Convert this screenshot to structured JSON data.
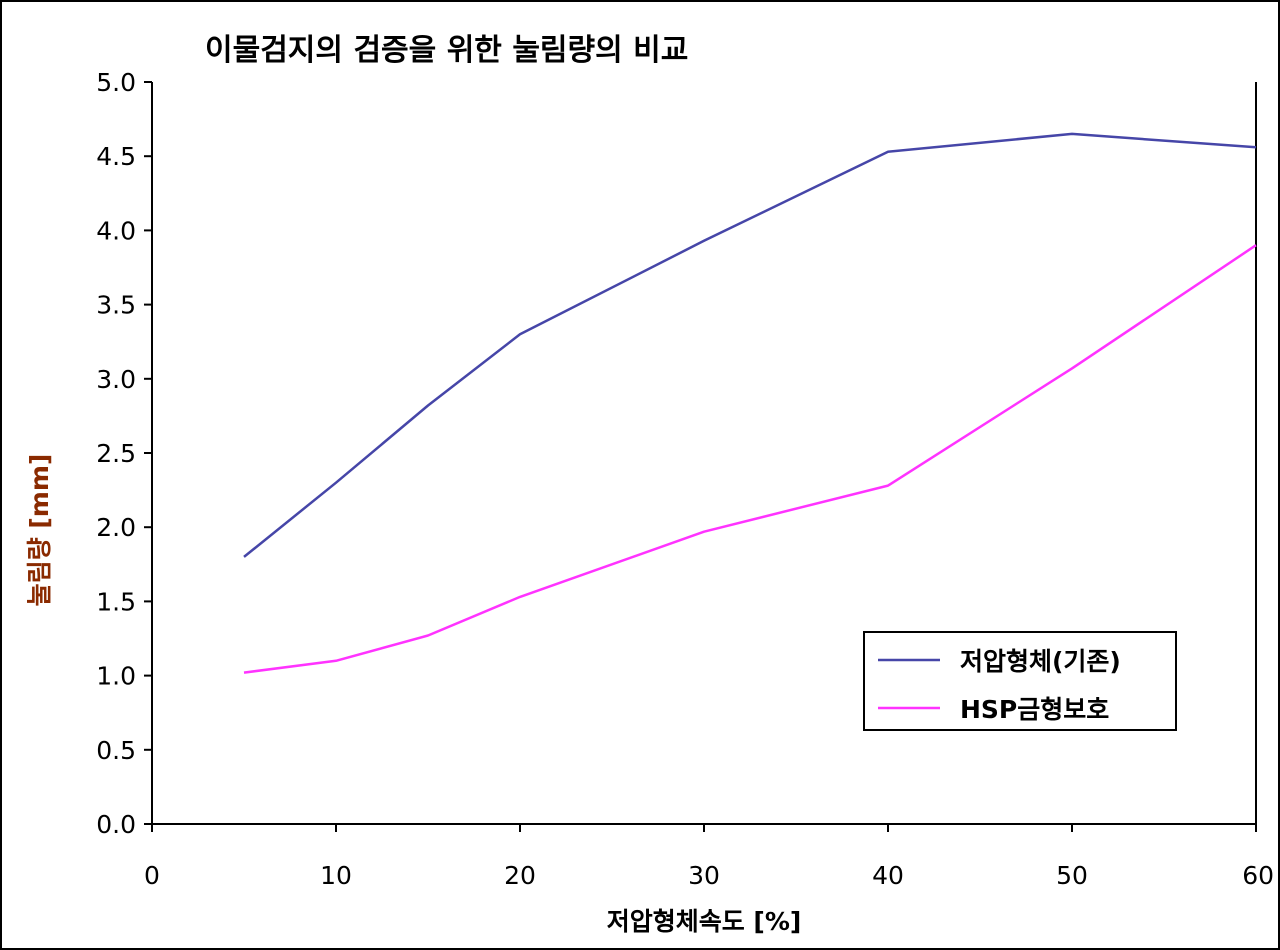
{
  "chart_data": {
    "type": "line",
    "title": "이물검지의 검증을 위한 눌림량의 비교",
    "xlabel": "저압형체속도 [%]",
    "ylabel": "눌림량 [mm]",
    "xlim": [
      0,
      60
    ],
    "ylim": [
      0,
      5
    ],
    "x_ticks": [
      "0",
      "10",
      "20",
      "30",
      "40",
      "50",
      "60"
    ],
    "y_ticks": [
      "0.0",
      "0.5",
      "1.0",
      "1.5",
      "2.0",
      "2.5",
      "3.0",
      "3.5",
      "4.0",
      "4.5",
      "5.0"
    ],
    "grid": false,
    "legend_position": "bottom-right",
    "series": [
      {
        "name": "저압형체(기존)",
        "color": "#4646a8",
        "x": [
          5,
          10,
          15,
          20,
          30,
          40,
          50,
          60
        ],
        "y": [
          1.8,
          2.3,
          2.82,
          3.3,
          3.93,
          4.53,
          4.65,
          4.56
        ]
      },
      {
        "name": "HSP금형보호",
        "color": "#ff33ff",
        "x": [
          5,
          10,
          15,
          20,
          30,
          40,
          50,
          60
        ],
        "y": [
          1.02,
          1.1,
          1.27,
          1.53,
          1.97,
          2.28,
          3.07,
          3.9
        ]
      }
    ]
  }
}
